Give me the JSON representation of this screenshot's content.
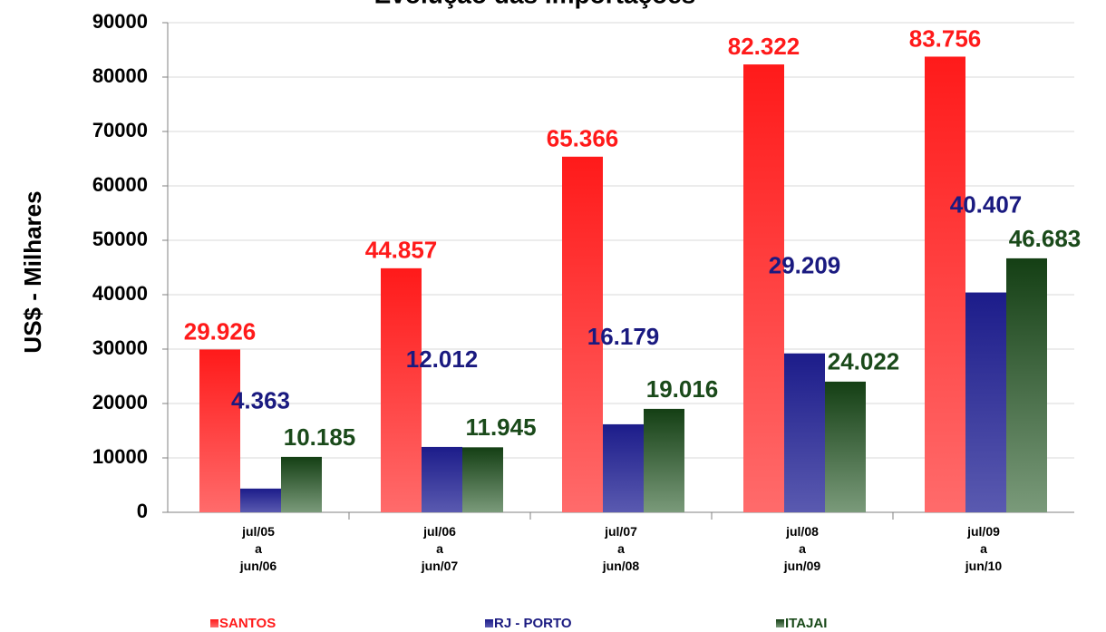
{
  "chart_data": {
    "type": "bar",
    "title": "Evolução das Importações",
    "y_label": "US$ - Milhares",
    "categories": [
      "jul/05\na\njun/06",
      "jul/06\na\njun/07",
      "jul/07\na\njun/08",
      "jul/08\na\njun/09",
      "jul/09\na\njun/10"
    ],
    "series": [
      {
        "name": "SANTOS",
        "color": "#ff1a1a",
        "label_color": "#ff1a1a",
        "values": [
          29926,
          44857,
          65366,
          82322,
          83756
        ],
        "value_labels": [
          "29.926",
          "44.857",
          "65.366",
          "82.322",
          "83.756"
        ]
      },
      {
        "name": "RJ - PORTO",
        "color": "#1c1c8a",
        "label_color": "#1a1a80",
        "values": [
          4363,
          12012,
          16179,
          29209,
          40407
        ],
        "value_labels": [
          "4.363",
          "12.012",
          "16.179",
          "29.209",
          "40.407"
        ]
      },
      {
        "name": "ITAJAI",
        "color": "#143f14",
        "label_color": "#1a4a1a",
        "values": [
          10185,
          11945,
          19016,
          24022,
          46683
        ],
        "value_labels": [
          "10.185",
          "11.945",
          "19.016",
          "24.022",
          "46.683"
        ]
      }
    ],
    "ylim": [
      0,
      90000
    ],
    "yticks": [
      0,
      10000,
      20000,
      30000,
      40000,
      50000,
      60000,
      70000,
      80000,
      90000
    ],
    "grid": true,
    "legend": "bottom"
  }
}
